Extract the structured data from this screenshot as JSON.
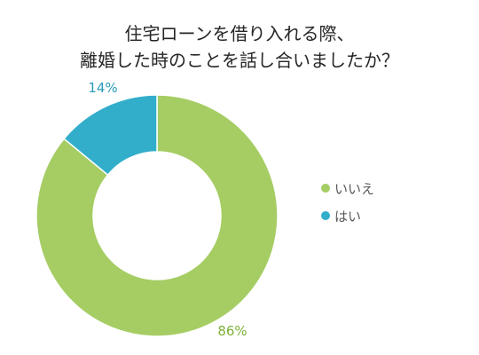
{
  "chart_data": {
    "type": "pie",
    "donut": true,
    "title_lines": [
      "住宅ローンを借り入れる際、",
      "離婚した時のことを話し合いましたか？"
    ],
    "categories": [
      "いいえ",
      "はい"
    ],
    "values": [
      86,
      14
    ],
    "unit": "%",
    "data_labels": [
      "86%",
      "14%"
    ],
    "colors": [
      "#A5CD63",
      "#32AECB"
    ],
    "label_colors": [
      "#7EB03A",
      "#2A9CBA"
    ],
    "legend_position": "right"
  }
}
